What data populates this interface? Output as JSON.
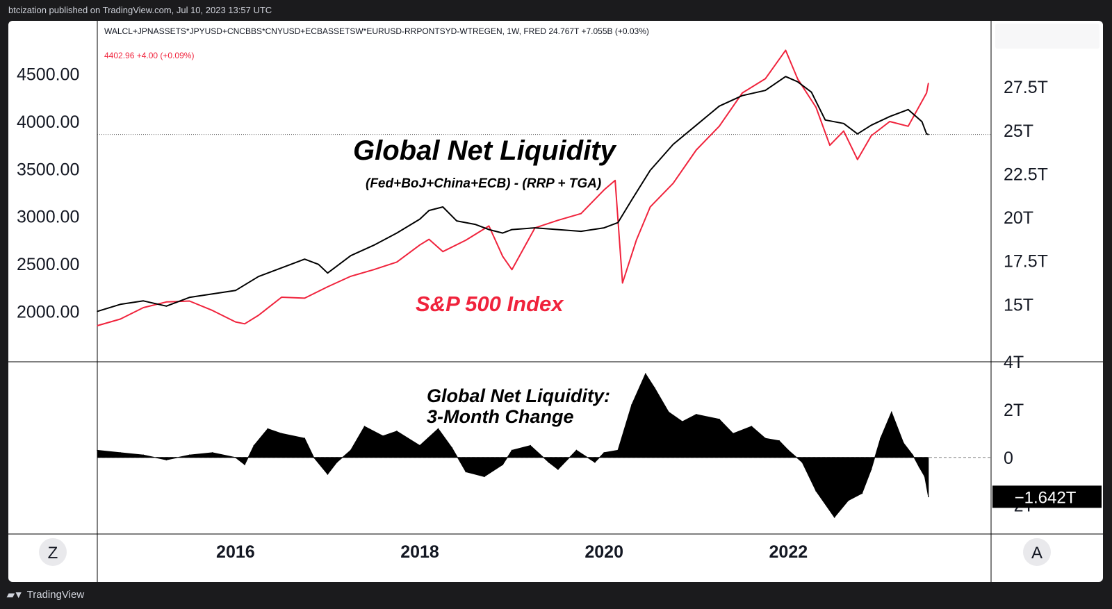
{
  "header": {
    "published": "btcization published on TradingView.com, Jul 10, 2023 13:57 UTC"
  },
  "legend": {
    "line1": "WALCL+JPNASSETS*JPYUSD+CNCBBS*CNYUSD+ECBASSETSW*EURUSD-RRPONTSYD-WTREGEN, 1W, FRED  24.767T  +7.055B (+0.03%)",
    "line2": "4402.96  +4.00 (+0.09%)"
  },
  "annotations": {
    "title": "Global Net Liquidity",
    "formula": "(Fed+BoJ+China+ECB) - (RRP + TGA)",
    "sp_label": "S&P 500 Index",
    "sub_title_1": "Global Net Liquidity:",
    "sub_title_2": "3-Month Change"
  },
  "footer": {
    "brand": "TradingView",
    "z_button": "Z",
    "a_button": "A"
  },
  "colors": {
    "liquidity": "#000000",
    "sp500": "#f0233c",
    "background": "#ffffff",
    "frame": "#1b1b1d"
  },
  "chart_data": [
    {
      "type": "line",
      "x_ticks": [
        "2016",
        "2018",
        "2020",
        "2022"
      ],
      "left_axis": {
        "ticks": [
          "4500.00",
          "4000.00",
          "3500.00",
          "3000.00",
          "2500.00",
          "2000.00"
        ],
        "range": [
          1470,
          5060
        ]
      },
      "right_axis": {
        "ticks": [
          "27.5T",
          "25T",
          "22.5T",
          "20T",
          "17.5T",
          "15T"
        ],
        "range": [
          11.7,
          31.3
        ]
      },
      "x_range": [
        2014.5,
        2024.2
      ],
      "series": [
        {
          "name": "S&P 500 Index",
          "axis": "left",
          "points": [
            [
              2014.5,
              1850
            ],
            [
              2014.75,
              1920
            ],
            [
              2015.0,
              2040
            ],
            [
              2015.25,
              2100
            ],
            [
              2015.5,
              2110
            ],
            [
              2015.75,
              2010
            ],
            [
              2016.0,
              1890
            ],
            [
              2016.1,
              1870
            ],
            [
              2016.25,
              1960
            ],
            [
              2016.5,
              2150
            ],
            [
              2016.75,
              2140
            ],
            [
              2017.0,
              2260
            ],
            [
              2017.25,
              2370
            ],
            [
              2017.5,
              2440
            ],
            [
              2017.75,
              2520
            ],
            [
              2018.0,
              2700
            ],
            [
              2018.1,
              2760
            ],
            [
              2018.25,
              2630
            ],
            [
              2018.5,
              2750
            ],
            [
              2018.75,
              2900
            ],
            [
              2018.9,
              2580
            ],
            [
              2019.0,
              2440
            ],
            [
              2019.25,
              2880
            ],
            [
              2019.5,
              2960
            ],
            [
              2019.75,
              3030
            ],
            [
              2020.0,
              3280
            ],
            [
              2020.12,
              3380
            ],
            [
              2020.2,
              2300
            ],
            [
              2020.35,
              2750
            ],
            [
              2020.5,
              3100
            ],
            [
              2020.75,
              3350
            ],
            [
              2021.0,
              3700
            ],
            [
              2021.25,
              3950
            ],
            [
              2021.5,
              4300
            ],
            [
              2021.75,
              4450
            ],
            [
              2021.97,
              4750
            ],
            [
              2022.1,
              4450
            ],
            [
              2022.3,
              4150
            ],
            [
              2022.45,
              3750
            ],
            [
              2022.6,
              3900
            ],
            [
              2022.75,
              3600
            ],
            [
              2022.9,
              3850
            ],
            [
              2023.1,
              4000
            ],
            [
              2023.3,
              3950
            ],
            [
              2023.5,
              4300
            ],
            [
              2023.52,
              4402.96
            ]
          ]
        },
        {
          "name": "Global Net Liquidity",
          "axis": "right",
          "points": [
            [
              2014.5,
              14.6
            ],
            [
              2014.75,
              15.0
            ],
            [
              2015.0,
              15.2
            ],
            [
              2015.25,
              14.9
            ],
            [
              2015.5,
              15.4
            ],
            [
              2015.75,
              15.6
            ],
            [
              2016.0,
              15.8
            ],
            [
              2016.25,
              16.6
            ],
            [
              2016.5,
              17.1
            ],
            [
              2016.75,
              17.6
            ],
            [
              2016.9,
              17.3
            ],
            [
              2017.0,
              16.8
            ],
            [
              2017.25,
              17.8
            ],
            [
              2017.5,
              18.4
            ],
            [
              2017.75,
              19.1
            ],
            [
              2018.0,
              19.9
            ],
            [
              2018.1,
              20.4
            ],
            [
              2018.25,
              20.6
            ],
            [
              2018.4,
              19.8
            ],
            [
              2018.6,
              19.6
            ],
            [
              2018.75,
              19.3
            ],
            [
              2018.9,
              19.1
            ],
            [
              2019.0,
              19.3
            ],
            [
              2019.25,
              19.4
            ],
            [
              2019.5,
              19.3
            ],
            [
              2019.75,
              19.2
            ],
            [
              2020.0,
              19.4
            ],
            [
              2020.15,
              19.7
            ],
            [
              2020.3,
              21.0
            ],
            [
              2020.5,
              22.7
            ],
            [
              2020.75,
              24.2
            ],
            [
              2021.0,
              25.3
            ],
            [
              2021.25,
              26.4
            ],
            [
              2021.5,
              27.0
            ],
            [
              2021.75,
              27.3
            ],
            [
              2021.97,
              28.1
            ],
            [
              2022.1,
              27.8
            ],
            [
              2022.25,
              27.2
            ],
            [
              2022.4,
              25.6
            ],
            [
              2022.6,
              25.4
            ],
            [
              2022.75,
              24.8
            ],
            [
              2022.9,
              25.3
            ],
            [
              2023.1,
              25.8
            ],
            [
              2023.3,
              26.2
            ],
            [
              2023.45,
              25.5
            ],
            [
              2023.5,
              24.8
            ],
            [
              2023.52,
              24.767
            ]
          ]
        }
      ],
      "reference_line": {
        "value": "24.767T"
      }
    },
    {
      "type": "area",
      "y_ticks": [
        "4T",
        "2T",
        "0",
        "−2T"
      ],
      "y_range": [
        -3.2,
        4.0
      ],
      "last_value_label": "−1.642T",
      "series": [
        {
          "name": "3-Month Change",
          "points": [
            [
              2014.5,
              0.3
            ],
            [
              2014.75,
              0.2
            ],
            [
              2015.0,
              0.1
            ],
            [
              2015.25,
              -0.1
            ],
            [
              2015.5,
              0.1
            ],
            [
              2015.75,
              0.2
            ],
            [
              2016.0,
              0.0
            ],
            [
              2016.1,
              -0.3
            ],
            [
              2016.2,
              0.5
            ],
            [
              2016.35,
              1.2
            ],
            [
              2016.5,
              1.0
            ],
            [
              2016.75,
              0.8
            ],
            [
              2016.85,
              0.0
            ],
            [
              2017.0,
              -0.7
            ],
            [
              2017.1,
              -0.2
            ],
            [
              2017.25,
              0.3
            ],
            [
              2017.4,
              1.3
            ],
            [
              2017.6,
              0.9
            ],
            [
              2017.75,
              1.1
            ],
            [
              2018.0,
              0.5
            ],
            [
              2018.2,
              1.2
            ],
            [
              2018.35,
              0.4
            ],
            [
              2018.5,
              -0.6
            ],
            [
              2018.7,
              -0.8
            ],
            [
              2018.9,
              -0.3
            ],
            [
              2019.0,
              0.3
            ],
            [
              2019.2,
              0.5
            ],
            [
              2019.4,
              -0.2
            ],
            [
              2019.5,
              -0.5
            ],
            [
              2019.7,
              0.3
            ],
            [
              2019.9,
              -0.2
            ],
            [
              2020.0,
              0.2
            ],
            [
              2020.15,
              0.3
            ],
            [
              2020.3,
              2.2
            ],
            [
              2020.45,
              3.5
            ],
            [
              2020.55,
              2.9
            ],
            [
              2020.7,
              1.9
            ],
            [
              2020.85,
              1.5
            ],
            [
              2021.0,
              1.8
            ],
            [
              2021.25,
              1.6
            ],
            [
              2021.4,
              1.0
            ],
            [
              2021.6,
              1.3
            ],
            [
              2021.75,
              0.8
            ],
            [
              2021.9,
              0.7
            ],
            [
              2022.0,
              0.3
            ],
            [
              2022.15,
              -0.2
            ],
            [
              2022.3,
              -1.4
            ],
            [
              2022.5,
              -2.5
            ],
            [
              2022.65,
              -1.8
            ],
            [
              2022.8,
              -1.5
            ],
            [
              2022.9,
              -0.5
            ],
            [
              2023.0,
              0.8
            ],
            [
              2023.12,
              1.9
            ],
            [
              2023.25,
              0.6
            ],
            [
              2023.35,
              0.1
            ],
            [
              2023.42,
              -0.4
            ],
            [
              2023.48,
              -0.8
            ],
            [
              2023.52,
              -1.642
            ]
          ]
        }
      ]
    }
  ]
}
